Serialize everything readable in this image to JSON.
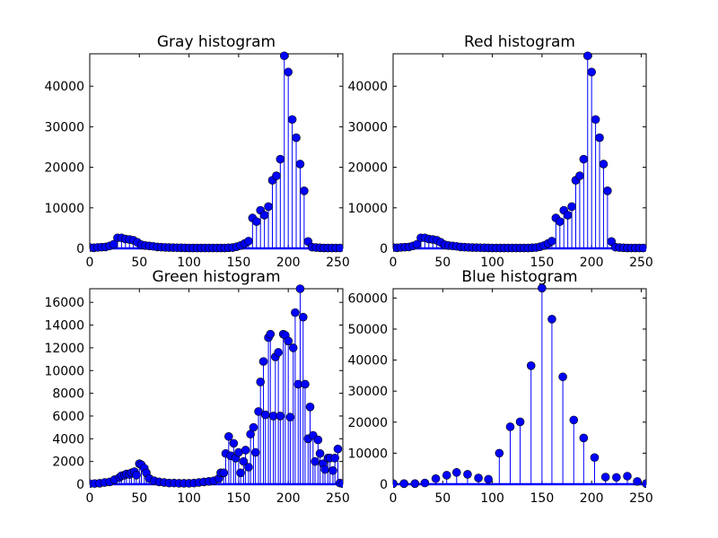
{
  "chart_data": [
    {
      "type": "stem",
      "title": "Gray histogram",
      "color": "#0000ff",
      "xlim": [
        0,
        255
      ],
      "ylim": [
        0,
        48000
      ],
      "xticks": [
        "0",
        "50",
        "100",
        "150",
        "200",
        "250"
      ],
      "yticks": [
        "0",
        "10000",
        "20000",
        "30000",
        "40000"
      ],
      "x": [
        0,
        4,
        8,
        12,
        16,
        20,
        24,
        28,
        32,
        36,
        40,
        44,
        48,
        52,
        56,
        60,
        64,
        68,
        72,
        76,
        80,
        84,
        88,
        92,
        96,
        100,
        104,
        108,
        112,
        116,
        120,
        124,
        128,
        132,
        136,
        140,
        144,
        148,
        152,
        156,
        160,
        164,
        168,
        172,
        176,
        180,
        184,
        188,
        192,
        196,
        200,
        204,
        208,
        212,
        216,
        220,
        224,
        228,
        232,
        236,
        240,
        244,
        248,
        252
      ],
      "y": [
        200,
        150,
        250,
        300,
        350,
        600,
        1000,
        2600,
        2600,
        2300,
        2200,
        2000,
        1500,
        900,
        700,
        600,
        500,
        350,
        300,
        250,
        200,
        180,
        160,
        150,
        120,
        100,
        100,
        100,
        100,
        100,
        100,
        100,
        100,
        100,
        100,
        150,
        200,
        400,
        700,
        1200,
        1800,
        7500,
        6600,
        9400,
        8200,
        10300,
        16800,
        17900,
        22000,
        47500,
        43500,
        31800,
        27300,
        20800,
        14200,
        1700,
        300,
        200,
        150,
        100,
        100,
        100,
        100,
        100
      ]
    },
    {
      "type": "stem",
      "title": "Red histogram",
      "color": "#0000ff",
      "xlim": [
        0,
        255
      ],
      "ylim": [
        0,
        48000
      ],
      "xticks": [
        "0",
        "50",
        "100",
        "150",
        "200",
        "250"
      ],
      "yticks": [
        "0",
        "10000",
        "20000",
        "30000",
        "40000"
      ],
      "x": [
        0,
        4,
        8,
        12,
        16,
        20,
        24,
        28,
        32,
        36,
        40,
        44,
        48,
        52,
        56,
        60,
        64,
        68,
        72,
        76,
        80,
        84,
        88,
        92,
        96,
        100,
        104,
        108,
        112,
        116,
        120,
        124,
        128,
        132,
        136,
        140,
        144,
        148,
        152,
        156,
        160,
        164,
        168,
        172,
        176,
        180,
        184,
        188,
        192,
        196,
        200,
        204,
        208,
        212,
        216,
        220,
        224,
        228,
        232,
        236,
        240,
        244,
        248,
        252
      ],
      "y": [
        200,
        150,
        250,
        300,
        350,
        600,
        1000,
        2600,
        2600,
        2300,
        2200,
        2000,
        1500,
        900,
        700,
        600,
        500,
        350,
        300,
        250,
        200,
        180,
        160,
        150,
        120,
        100,
        100,
        100,
        100,
        100,
        100,
        100,
        100,
        100,
        100,
        150,
        200,
        400,
        700,
        1200,
        1800,
        7500,
        6600,
        9400,
        8200,
        10300,
        16800,
        17900,
        22000,
        47500,
        43500,
        31800,
        27300,
        20800,
        14200,
        1700,
        300,
        200,
        150,
        100,
        100,
        100,
        100,
        100
      ]
    },
    {
      "type": "stem",
      "title": "Green histogram",
      "color": "#0000ff",
      "xlim": [
        0,
        255
      ],
      "ylim": [
        0,
        17200
      ],
      "xticks": [
        "0",
        "50",
        "100",
        "150",
        "200",
        "250"
      ],
      "yticks": [
        "0",
        "2000",
        "4000",
        "6000",
        "8000",
        "10000",
        "12000",
        "14000",
        "16000"
      ],
      "x": [
        0,
        5,
        10,
        15,
        20,
        25,
        30,
        32,
        35,
        37,
        40,
        42,
        45,
        47,
        50,
        52,
        55,
        57,
        60,
        65,
        70,
        75,
        80,
        85,
        90,
        95,
        100,
        105,
        110,
        115,
        120,
        125,
        130,
        132,
        135,
        137,
        140,
        142,
        145,
        147,
        150,
        152,
        155,
        157,
        160,
        162,
        165,
        167,
        170,
        172,
        175,
        177,
        180,
        182,
        185,
        187,
        190,
        192,
        195,
        197,
        200,
        202,
        205,
        207,
        210,
        212,
        215,
        217,
        220,
        222,
        225,
        227,
        230,
        232,
        235,
        237,
        240,
        242,
        245,
        247,
        250,
        252,
        255
      ],
      "y": [
        50,
        60,
        80,
        150,
        200,
        400,
        600,
        750,
        800,
        900,
        850,
        1000,
        1100,
        800,
        1800,
        1700,
        1400,
        1000,
        500,
        300,
        200,
        150,
        100,
        100,
        80,
        80,
        80,
        100,
        150,
        200,
        250,
        300,
        500,
        1000,
        1000,
        2700,
        4200,
        2500,
        3600,
        2300,
        2800,
        1000,
        2000,
        3000,
        1500,
        4400,
        5000,
        2800,
        6400,
        9000,
        10800,
        6100,
        12900,
        13200,
        6000,
        11200,
        11600,
        6000,
        13200,
        13100,
        12600,
        5900,
        12000,
        15100,
        8800,
        17200,
        14700,
        8800,
        4000,
        6800,
        4300,
        2000,
        3900,
        2700,
        1800,
        1300,
        2300,
        2300,
        1200,
        2300,
        3100,
        100,
        50
      ]
    },
    {
      "type": "stem",
      "title": "Blue histogram",
      "color": "#0000ff",
      "xlim": [
        0,
        255
      ],
      "ylim": [
        0,
        63000
      ],
      "xticks": [
        "0",
        "50",
        "100",
        "150",
        "200",
        "250"
      ],
      "yticks": [
        "0",
        "10000",
        "20000",
        "30000",
        "40000",
        "50000",
        "60000"
      ],
      "x": [
        0,
        11,
        22,
        32,
        43,
        54,
        64,
        75,
        86,
        96,
        107,
        118,
        128,
        139,
        150,
        160,
        171,
        182,
        192,
        203,
        214,
        225,
        236,
        246,
        255
      ],
      "y": [
        200,
        200,
        200,
        400,
        1800,
        2900,
        3800,
        3200,
        2000,
        1600,
        10000,
        18500,
        20100,
        38200,
        63200,
        53200,
        34600,
        20700,
        14900,
        8600,
        2300,
        2200,
        2600,
        900,
        200
      ]
    }
  ]
}
